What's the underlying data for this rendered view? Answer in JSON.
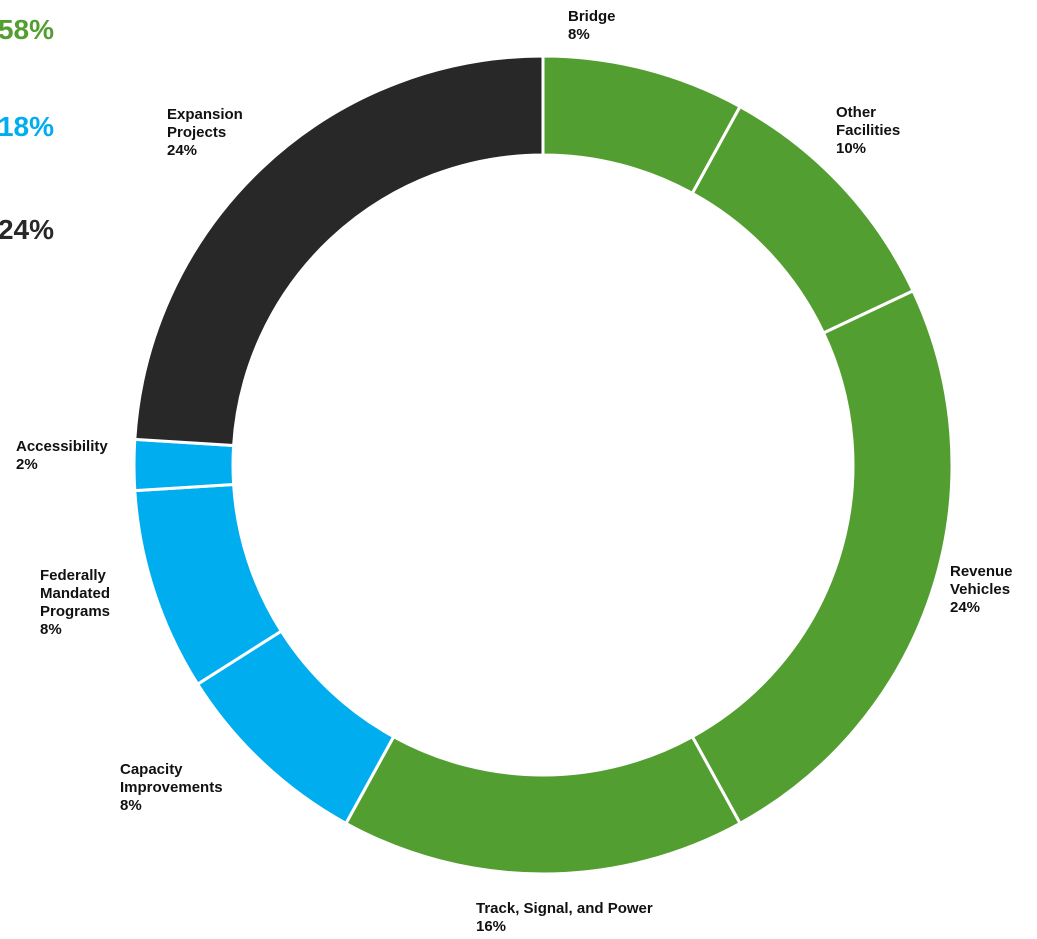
{
  "chart_data": {
    "type": "donut",
    "categories": [
      "Bridge",
      "Other Facilities",
      "Revenue Vehicles",
      "Track, Signal, and Power",
      "Capacity Improvements",
      "Federally Mandated Programs",
      "Accessibility",
      "Expansion Projects"
    ],
    "values": [
      8,
      10,
      24,
      16,
      8,
      8,
      2,
      24
    ],
    "value_labels": [
      "8%",
      "10%",
      "24%",
      "16%",
      "8%",
      "8%",
      "2%",
      "24%"
    ],
    "colors": [
      "#539e31",
      "#539e31",
      "#539e31",
      "#539e31",
      "#00aeef",
      "#00aeef",
      "#00aeef",
      "#282828"
    ],
    "group_totals": {
      "values": [
        58,
        18,
        24
      ],
      "value_labels": [
        "58%",
        "18%",
        "24%"
      ],
      "colors": [
        "#539e31",
        "#00aeef",
        "#282828"
      ]
    }
  }
}
